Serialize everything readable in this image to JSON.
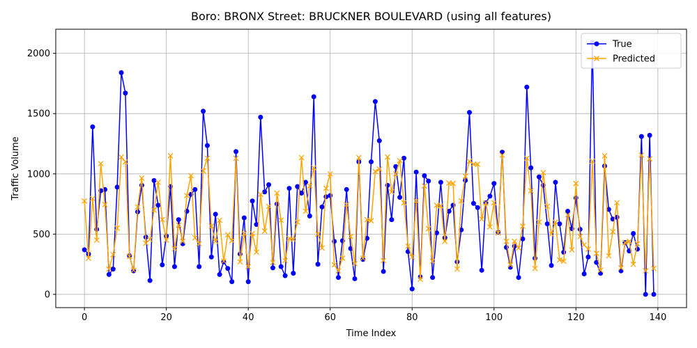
{
  "chart_data": {
    "type": "line",
    "title": "Boro: BRONX Street: BRUCKNER BOULEVARD (using all features)",
    "xlabel": "Time Index",
    "ylabel": "Traffic Volume",
    "xlim": [
      -7,
      147
    ],
    "ylim": [
      -110,
      2200
    ],
    "xticks": [
      0,
      20,
      40,
      60,
      80,
      100,
      120,
      140
    ],
    "yticks": [
      0,
      500,
      1000,
      1500,
      2000
    ],
    "grid": true,
    "legend_position": "top-right",
    "series": [
      {
        "name": "True",
        "color": "#0000ff",
        "marker": "circle",
        "values": [
          370,
          335,
          1390,
          540,
          860,
          870,
          165,
          210,
          890,
          1840,
          1670,
          320,
          195,
          685,
          905,
          475,
          115,
          945,
          740,
          245,
          485,
          895,
          230,
          620,
          420,
          690,
          830,
          870,
          230,
          1520,
          1235,
          310,
          665,
          165,
          270,
          215,
          105,
          1185,
          335,
          635,
          105,
          775,
          580,
          1470,
          850,
          910,
          220,
          750,
          230,
          155,
          880,
          175,
          895,
          840,
          930,
          650,
          1640,
          250,
          725,
          810,
          820,
          440,
          140,
          445,
          870,
          380,
          130,
          1100,
          290,
          465,
          1100,
          1600,
          1275,
          190,
          905,
          620,
          1060,
          805,
          1130,
          355,
          45,
          1015,
          145,
          985,
          940,
          140,
          510,
          930,
          470,
          690,
          740,
          270,
          535,
          945,
          1510,
          755,
          720,
          200,
          760,
          815,
          920,
          515,
          1180,
          390,
          225,
          400,
          140,
          460,
          1720,
          1050,
          300,
          975,
          905,
          585,
          240,
          930,
          585,
          350,
          690,
          545,
          800,
          540,
          170,
          310,
          2090,
          265,
          175,
          1065,
          705,
          625,
          640,
          195,
          430,
          360,
          505,
          375,
          1310,
          0,
          1320,
          0
        ]
      },
      {
        "name": "Predicted",
        "color": "#ffa500",
        "marker": "x",
        "values": [
          775,
          300,
          795,
          450,
          1085,
          745,
          210,
          330,
          550,
          1140,
          1100,
          315,
          200,
          725,
          965,
          425,
          455,
          700,
          930,
          620,
          450,
          1150,
          380,
          575,
          440,
          820,
          985,
          470,
          420,
          1025,
          1130,
          565,
          440,
          615,
          275,
          495,
          445,
          1130,
          270,
          505,
          230,
          505,
          350,
          830,
          525,
          730,
          265,
          840,
          615,
          280,
          465,
          455,
          600,
          1135,
          690,
          900,
          1050,
          500,
          385,
          880,
          1000,
          245,
          195,
          300,
          745,
          480,
          255,
          1135,
          300,
          620,
          610,
          1020,
          1040,
          280,
          1140,
          850,
          1000,
          1110,
          760,
          400,
          310,
          775,
          125,
          900,
          545,
          275,
          740,
          735,
          440,
          925,
          920,
          210,
          775,
          980,
          1105,
          1080,
          1080,
          625,
          760,
          560,
          760,
          510,
          1155,
          440,
          245,
          440,
          385,
          565,
          1130,
          860,
          215,
          600,
          1010,
          730,
          500,
          600,
          285,
          275,
          660,
          370,
          920,
          480,
          410,
          375,
          1105,
          340,
          200,
          1150,
          320,
          520,
          760,
          220,
          430,
          440,
          250,
          420,
          1155,
          195,
          1125,
          215
        ]
      }
    ]
  }
}
